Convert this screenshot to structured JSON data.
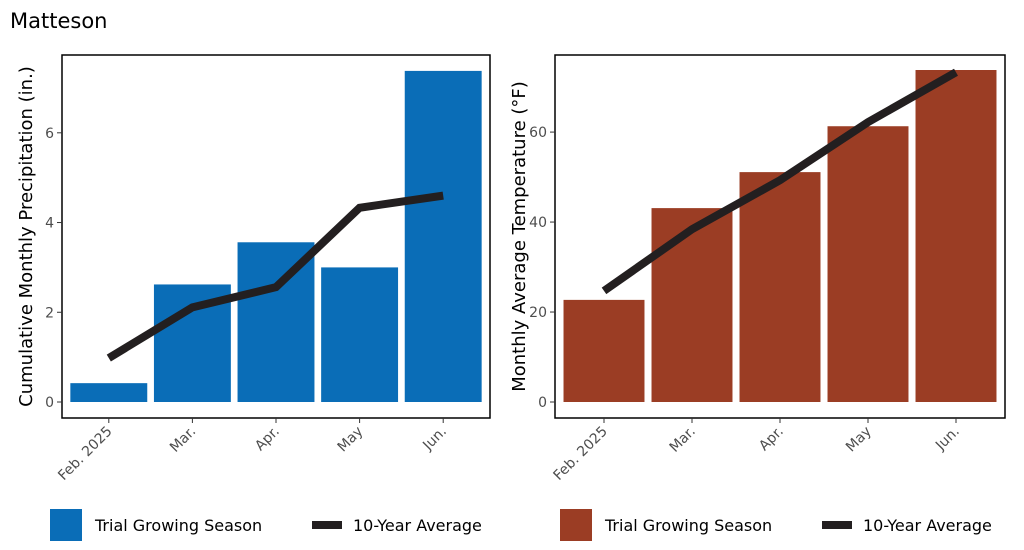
{
  "title": "Matteson",
  "chart_data": [
    {
      "type": "bar",
      "categories": [
        "Feb. 2025",
        "Mar.",
        "Apr.",
        "May",
        "Jun."
      ],
      "ylabel": "Cumulative Monthly Precipitation (in.)",
      "ylim": [
        0,
        7.4
      ],
      "yticks": [
        0,
        2,
        4,
        6
      ],
      "grid": false,
      "bar_color": "#0a6db7",
      "series": [
        {
          "name": "Trial Growing Season",
          "type": "bar",
          "values": [
            0.42,
            2.62,
            3.56,
            3.0,
            7.38
          ]
        },
        {
          "name": "10-Year Average",
          "type": "line",
          "values": [
            0.98,
            2.11,
            2.56,
            4.33,
            4.6
          ]
        }
      ],
      "legend": "bottom"
    },
    {
      "type": "bar",
      "categories": [
        "Feb. 2025",
        "Mar.",
        "Apr.",
        "May",
        "Jun."
      ],
      "ylabel": "Monthly Average Temperature  (°F)",
      "ylim": [
        0,
        73.8
      ],
      "yticks": [
        0,
        20,
        40,
        60
      ],
      "grid": false,
      "bar_color": "#9b3d24",
      "series": [
        {
          "name": "Trial Growing Season",
          "type": "bar",
          "values": [
            22.7,
            43.1,
            51.1,
            61.3,
            73.8
          ]
        },
        {
          "name": "10-Year Average",
          "type": "line",
          "values": [
            24.7,
            38.4,
            49.3,
            62.2,
            73.3
          ]
        }
      ],
      "legend": "bottom"
    }
  ]
}
